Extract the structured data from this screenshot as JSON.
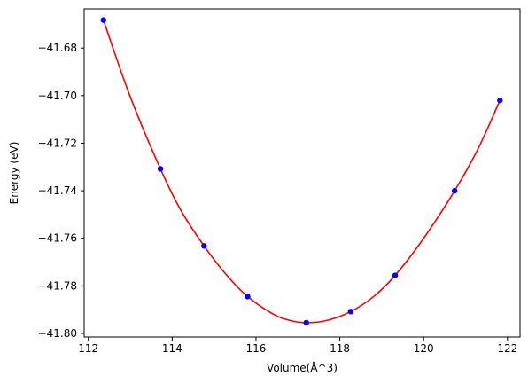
{
  "chart_data": {
    "type": "scatter",
    "title": "",
    "xlabel": "Volume(Å^3)",
    "ylabel": "Energy (eV)",
    "xlim": [
      111.9,
      122.3
    ],
    "ylim": [
      -41.8015,
      -41.6635
    ],
    "xticks": [
      112,
      114,
      116,
      118,
      120,
      122
    ],
    "xtick_labels": [
      "112",
      "114",
      "116",
      "118",
      "120",
      "122"
    ],
    "yticks": [
      -41.68,
      -41.7,
      -41.72,
      -41.74,
      -41.76,
      -41.78,
      -41.8
    ],
    "ytick_labels": [
      "−41.68",
      "−41.70",
      "−41.72",
      "−41.74",
      "−41.76",
      "−41.78",
      "−41.80"
    ],
    "grid": false,
    "legend": "none",
    "series": [
      {
        "kind": "points",
        "color": "#0000ff",
        "x": [
          112.36,
          113.72,
          114.76,
          115.8,
          117.2,
          118.26,
          119.32,
          120.74,
          121.82
        ],
        "y": [
          -41.6682,
          -41.7308,
          -41.7632,
          -41.7845,
          -41.7955,
          -41.7908,
          -41.7756,
          -41.74,
          -41.702
        ]
      },
      {
        "kind": "fit-curve",
        "color": "#ff0000",
        "x": [
          112.36,
          113.0,
          113.72,
          114.2,
          114.76,
          115.3,
          115.8,
          116.4,
          116.8,
          117.2,
          117.7,
          118.26,
          118.8,
          119.32,
          120.0,
          120.74,
          121.3,
          121.82
        ],
        "y": [
          -41.6682,
          -41.7005,
          -41.7308,
          -41.748,
          -41.7632,
          -41.7755,
          -41.7845,
          -41.7918,
          -41.7945,
          -41.7955,
          -41.7945,
          -41.7908,
          -41.7846,
          -41.7756,
          -41.76,
          -41.74,
          -41.7223,
          -41.702
        ]
      }
    ]
  }
}
